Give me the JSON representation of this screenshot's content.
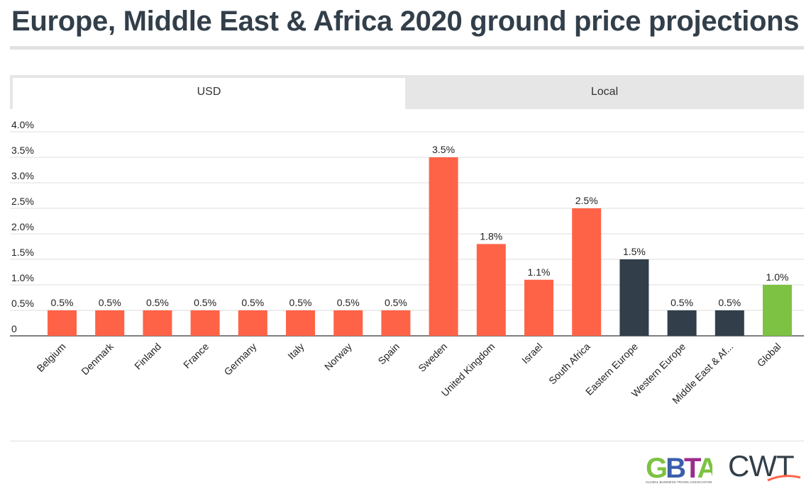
{
  "title": "Europe, Middle East & Africa 2020 ground price projections",
  "tabs": [
    {
      "label": "USD",
      "active": true
    },
    {
      "label": "Local",
      "active": false
    }
  ],
  "colors": {
    "country": "#ff6347",
    "region": "#323f4a",
    "global": "#7dc242"
  },
  "chart_data": {
    "type": "bar",
    "categories": [
      "Belgium",
      "Denmark",
      "Finland",
      "France",
      "Germany",
      "Italy",
      "Norway",
      "Spain",
      "Sweden",
      "United Kingdom",
      "Israel",
      "South Africa",
      "Eastern Europe",
      "Western Europe",
      "Middle East & Af...",
      "Global"
    ],
    "values": [
      0.5,
      0.5,
      0.5,
      0.5,
      0.5,
      0.5,
      0.5,
      0.5,
      3.5,
      1.8,
      1.1,
      2.5,
      1.5,
      0.5,
      0.5,
      1.0
    ],
    "value_labels": [
      "0.5%",
      "0.5%",
      "0.5%",
      "0.5%",
      "0.5%",
      "0.5%",
      "0.5%",
      "0.5%",
      "3.5%",
      "1.8%",
      "1.1%",
      "2.5%",
      "1.5%",
      "0.5%",
      "0.5%",
      "1.0%"
    ],
    "groups": [
      "country",
      "country",
      "country",
      "country",
      "country",
      "country",
      "country",
      "country",
      "country",
      "country",
      "country",
      "country",
      "region",
      "region",
      "region",
      "global"
    ],
    "yticks": [
      0,
      0.5,
      1.0,
      1.5,
      2.0,
      2.5,
      3.0,
      3.5,
      4.0
    ],
    "ytick_labels": [
      "0",
      "0.5%",
      "1.0%",
      "1.5%",
      "2.0%",
      "2.5%",
      "3.0%",
      "3.5%",
      "4.0%"
    ],
    "ylim": [
      0,
      4.0
    ],
    "grid": true,
    "legend": "none"
  },
  "logos": {
    "gbta": {
      "text": "GBTA",
      "subtext": "GLOBAL BUSINESS TRAVEL ASSOCIATION"
    },
    "cwt": {
      "text": "CWT"
    }
  }
}
